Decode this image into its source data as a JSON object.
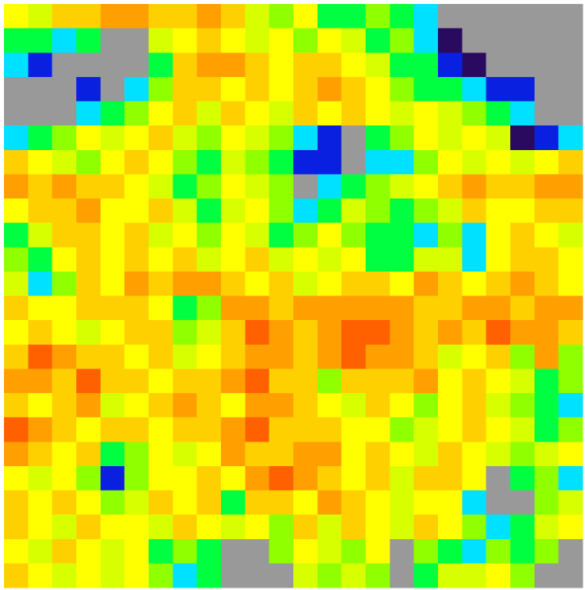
{
  "chart_data": {
    "type": "heatmap",
    "clim": [
      0,
      9
    ],
    "colors": [
      "#2a0a5e",
      "#0a20e0",
      "#00e0ff",
      "#00ff40",
      "#90ff00",
      "#d8ff00",
      "#ffff00",
      "#ffd000",
      "#ffa000",
      "#ff6000"
    ],
    "missing_color": "#999999",
    "values": [
      [
        6,
        5,
        7,
        7,
        8,
        8,
        7,
        7,
        8,
        7,
        5,
        4,
        6,
        3,
        3,
        4,
        3,
        2,
        null,
        null,
        null,
        null,
        null,
        null
      ],
      [
        3,
        3,
        2,
        3,
        null,
        null,
        5,
        6,
        7,
        6,
        5,
        6,
        4,
        6,
        5,
        3,
        4,
        2,
        0,
        null,
        null,
        null,
        null,
        null
      ],
      [
        2,
        1,
        null,
        null,
        null,
        null,
        3,
        7,
        8,
        8,
        7,
        6,
        7,
        7,
        6,
        5,
        3,
        3,
        1,
        0,
        null,
        null,
        null,
        null
      ],
      [
        null,
        null,
        null,
        1,
        null,
        2,
        4,
        7,
        7,
        6,
        7,
        6,
        7,
        8,
        7,
        6,
        4,
        3,
        3,
        2,
        1,
        1,
        null,
        null
      ],
      [
        null,
        null,
        null,
        2,
        3,
        4,
        6,
        7,
        5,
        7,
        6,
        5,
        7,
        6,
        7,
        6,
        5,
        6,
        5,
        4,
        3,
        2,
        null,
        null
      ],
      [
        2,
        3,
        4,
        6,
        5,
        6,
        7,
        5,
        4,
        6,
        5,
        4,
        2,
        1,
        null,
        3,
        4,
        6,
        5,
        6,
        5,
        0,
        1,
        2
      ],
      [
        7,
        6,
        5,
        4,
        6,
        7,
        6,
        4,
        3,
        5,
        4,
        3,
        1,
        1,
        null,
        2,
        2,
        4,
        6,
        5,
        6,
        5,
        6,
        7
      ],
      [
        8,
        7,
        8,
        7,
        7,
        6,
        5,
        3,
        4,
        6,
        5,
        4,
        null,
        2,
        3,
        4,
        5,
        6,
        7,
        8,
        7,
        7,
        8,
        8
      ],
      [
        6,
        7,
        7,
        8,
        6,
        6,
        7,
        5,
        3,
        5,
        6,
        4,
        2,
        3,
        5,
        4,
        3,
        4,
        5,
        7,
        6,
        6,
        7,
        7
      ],
      [
        3,
        5,
        7,
        7,
        6,
        7,
        5,
        6,
        4,
        6,
        5,
        3,
        4,
        6,
        4,
        3,
        3,
        2,
        4,
        2,
        6,
        7,
        6,
        5
      ],
      [
        4,
        3,
        6,
        7,
        6,
        7,
        6,
        7,
        5,
        6,
        7,
        5,
        6,
        5,
        6,
        3,
        3,
        5,
        5,
        2,
        6,
        7,
        7,
        6
      ],
      [
        5,
        2,
        4,
        7,
        6,
        8,
        7,
        8,
        8,
        7,
        6,
        7,
        5,
        6,
        7,
        7,
        6,
        8,
        7,
        6,
        7,
        8,
        7,
        6
      ],
      [
        7,
        6,
        6,
        7,
        7,
        7,
        6,
        3,
        4,
        8,
        8,
        7,
        8,
        8,
        8,
        8,
        8,
        7,
        7,
        8,
        8,
        7,
        8,
        8
      ],
      [
        6,
        7,
        6,
        5,
        6,
        7,
        7,
        4,
        5,
        7,
        9,
        8,
        7,
        8,
        9,
        9,
        8,
        7,
        8,
        7,
        9,
        8,
        8,
        7
      ],
      [
        7,
        9,
        8,
        7,
        7,
        6,
        7,
        5,
        6,
        7,
        8,
        8,
        7,
        8,
        9,
        8,
        8,
        7,
        5,
        6,
        7,
        4,
        8,
        4
      ],
      [
        8,
        8,
        7,
        9,
        7,
        7,
        6,
        7,
        7,
        8,
        9,
        7,
        7,
        4,
        7,
        7,
        7,
        8,
        6,
        7,
        6,
        5,
        3,
        4
      ],
      [
        7,
        6,
        7,
        8,
        5,
        6,
        7,
        8,
        7,
        6,
        8,
        8,
        7,
        6,
        5,
        7,
        6,
        4,
        6,
        7,
        5,
        4,
        3,
        2
      ],
      [
        9,
        8,
        7,
        6,
        7,
        7,
        6,
        7,
        7,
        8,
        9,
        7,
        7,
        7,
        6,
        6,
        4,
        5,
        6,
        7,
        6,
        5,
        3,
        4
      ],
      [
        8,
        7,
        6,
        7,
        3,
        4,
        6,
        5,
        6,
        8,
        7,
        7,
        8,
        8,
        6,
        7,
        6,
        5,
        7,
        6,
        5,
        4,
        5,
        6
      ],
      [
        6,
        5,
        6,
        4,
        1,
        4,
        6,
        6,
        7,
        6,
        8,
        9,
        8,
        7,
        6,
        7,
        5,
        7,
        7,
        6,
        null,
        3,
        4,
        2
      ],
      [
        7,
        6,
        7,
        6,
        4,
        5,
        7,
        6,
        7,
        3,
        7,
        7,
        6,
        8,
        7,
        6,
        5,
        6,
        6,
        2,
        null,
        null,
        4,
        5
      ],
      [
        7,
        6,
        5,
        7,
        6,
        6,
        5,
        7,
        6,
        5,
        6,
        4,
        7,
        5,
        7,
        6,
        5,
        7,
        6,
        4,
        2,
        3,
        5,
        6
      ],
      [
        6,
        5,
        7,
        6,
        5,
        6,
        3,
        4,
        3,
        null,
        null,
        4,
        6,
        5,
        4,
        6,
        null,
        4,
        3,
        2,
        4,
        3,
        4,
        null
      ],
      [
        7,
        6,
        5,
        6,
        5,
        6,
        4,
        2,
        3,
        null,
        null,
        null,
        5,
        4,
        5,
        4,
        null,
        3,
        5,
        5,
        6,
        4,
        null,
        null
      ]
    ]
  }
}
